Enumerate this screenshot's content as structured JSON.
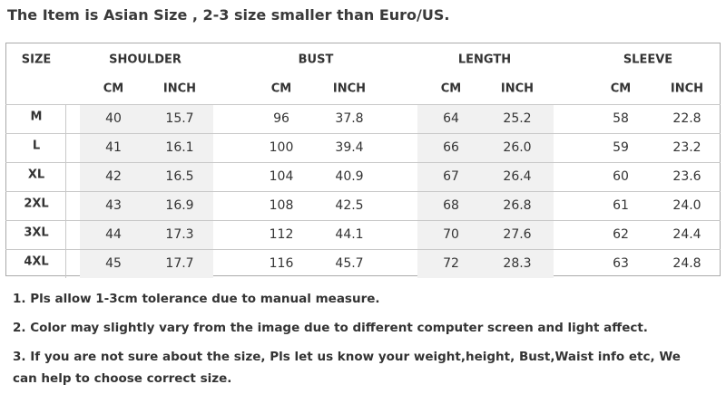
{
  "header": {
    "title": "The Item is Asian Size , 2-3 size smaller than Euro/US."
  },
  "table": {
    "group_headers": [
      "SIZE",
      "SHOULDER",
      "BUST",
      "LENGTH",
      "SLEEVE"
    ],
    "unit_headers": [
      "CM",
      "INCH",
      "CM",
      "INCH",
      "CM",
      "INCH",
      "CM",
      "INCH"
    ],
    "rows": [
      [
        "M",
        "40",
        "15.7",
        "96",
        "37.8",
        "64",
        "25.2",
        "58",
        "22.8"
      ],
      [
        "L",
        "41",
        "16.1",
        "100",
        "39.4",
        "66",
        "26.0",
        "59",
        "23.2"
      ],
      [
        "XL",
        "42",
        "16.5",
        "104",
        "40.9",
        "67",
        "26.4",
        "60",
        "23.6"
      ],
      [
        "2XL",
        "43",
        "16.9",
        "108",
        "42.5",
        "68",
        "26.8",
        "61",
        "24.0"
      ],
      [
        "3XL",
        "44",
        "17.3",
        "112",
        "44.1",
        "70",
        "27.6",
        "62",
        "24.4"
      ],
      [
        "4XL",
        "45",
        "17.7",
        "116",
        "45.7",
        "72",
        "28.3",
        "63",
        "24.8"
      ]
    ]
  },
  "notes": [
    "1. Pls allow 1-3cm tolerance due to manual measure.",
    "2. Color may slightly vary from the image due to different computer screen and light affect.",
    "3. If you are not sure about the size, Pls let us know your weight,height, Bust,Waist info etc, We can help to choose correct size."
  ]
}
